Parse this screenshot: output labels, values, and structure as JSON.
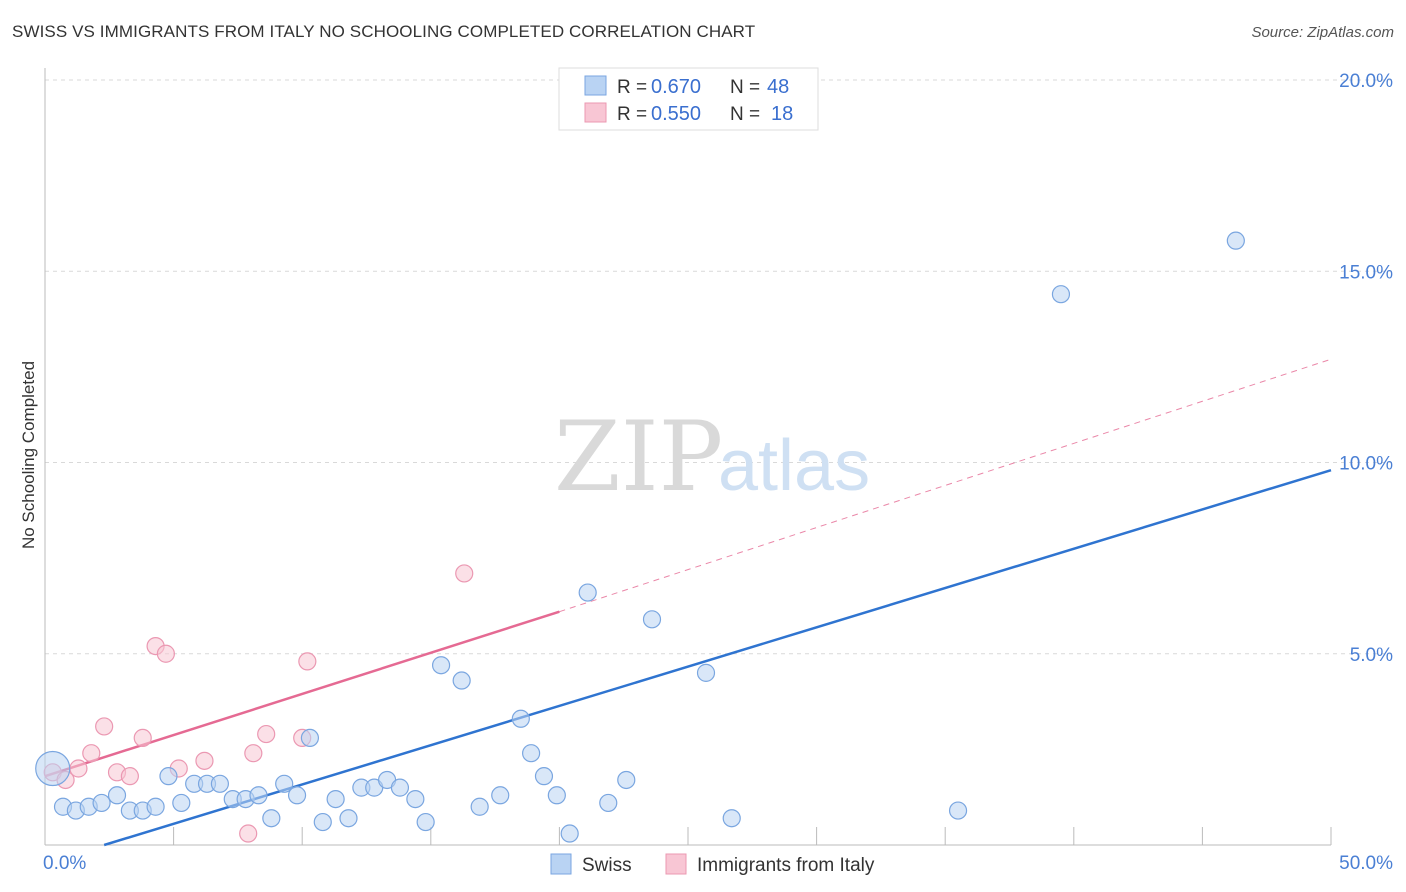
{
  "header": {
    "title": "SWISS VS IMMIGRANTS FROM ITALY NO SCHOOLING COMPLETED CORRELATION CHART",
    "source": "Source: ZipAtlas.com"
  },
  "watermark": {
    "zip": "ZIP",
    "atlas": "atlas"
  },
  "colors": {
    "swiss_fill": "#b9d3f3",
    "swiss_stroke": "#7aa6e0",
    "swiss_line": "#2f74d0",
    "italy_fill": "#f8c6d4",
    "italy_stroke": "#eb98b2",
    "italy_line": "#e56a93",
    "grid": "#d9d9d9",
    "axis_text": "#4a7fd4"
  },
  "legend": {
    "swiss": {
      "r_label": "R =",
      "r_value": "0.670",
      "n_label": "N =",
      "n_value": "48"
    },
    "italy": {
      "r_label": "R =",
      "r_value": "0.550",
      "n_label": "N =",
      "n_value": "18"
    }
  },
  "chart_data": {
    "type": "scatter",
    "title": "SWISS VS IMMIGRANTS FROM ITALY NO SCHOOLING COMPLETED CORRELATION CHART",
    "xlabel": "",
    "ylabel": "No Schooling Completed",
    "xlim": [
      0,
      50
    ],
    "ylim": [
      0,
      20
    ],
    "x_tick_labels": [
      "0.0%",
      "50.0%"
    ],
    "y_ticks": [
      5,
      10,
      15,
      20
    ],
    "y_tick_labels": [
      "5.0%",
      "10.0%",
      "15.0%",
      "20.0%"
    ],
    "series": [
      {
        "name": "Swiss",
        "points": [
          [
            0.3,
            2.0
          ],
          [
            0.7,
            1.0
          ],
          [
            1.2,
            0.9
          ],
          [
            1.7,
            1.0
          ],
          [
            2.2,
            1.1
          ],
          [
            2.8,
            1.3
          ],
          [
            3.3,
            0.9
          ],
          [
            3.8,
            0.9
          ],
          [
            4.3,
            1.0
          ],
          [
            4.8,
            1.8
          ],
          [
            5.3,
            1.1
          ],
          [
            5.8,
            1.6
          ],
          [
            6.3,
            1.6
          ],
          [
            6.8,
            1.6
          ],
          [
            7.3,
            1.2
          ],
          [
            7.8,
            1.2
          ],
          [
            8.3,
            1.3
          ],
          [
            8.8,
            0.7
          ],
          [
            9.3,
            1.6
          ],
          [
            9.8,
            1.3
          ],
          [
            10.3,
            2.8
          ],
          [
            10.8,
            0.6
          ],
          [
            11.3,
            1.2
          ],
          [
            11.8,
            0.7
          ],
          [
            12.3,
            1.5
          ],
          [
            12.8,
            1.5
          ],
          [
            13.3,
            1.7
          ],
          [
            13.8,
            1.5
          ],
          [
            14.4,
            1.2
          ],
          [
            14.8,
            0.6
          ],
          [
            15.4,
            4.7
          ],
          [
            16.2,
            4.3
          ],
          [
            16.9,
            1.0
          ],
          [
            17.7,
            1.3
          ],
          [
            18.5,
            3.3
          ],
          [
            18.9,
            2.4
          ],
          [
            19.4,
            1.8
          ],
          [
            19.9,
            1.3
          ],
          [
            20.4,
            0.3
          ],
          [
            21.1,
            6.6
          ],
          [
            21.9,
            1.1
          ],
          [
            22.6,
            1.7
          ],
          [
            23.6,
            5.9
          ],
          [
            25.7,
            4.5
          ],
          [
            26.7,
            0.7
          ],
          [
            35.5,
            0.9
          ],
          [
            39.5,
            14.4
          ],
          [
            46.3,
            15.8
          ]
        ],
        "sizes": [
          3,
          1,
          1,
          1,
          1,
          1,
          1,
          1,
          1,
          1,
          1,
          1,
          1,
          1,
          1,
          1,
          1,
          1,
          1,
          1,
          1,
          1,
          1,
          1,
          1,
          1,
          1,
          1,
          1,
          1,
          1,
          1,
          1,
          1,
          1,
          1,
          1,
          1,
          1,
          1,
          1,
          1,
          1,
          1,
          1,
          1,
          1,
          1
        ],
        "trend": {
          "x": [
            2.3,
            50.0
          ],
          "y": [
            0.0,
            9.8
          ],
          "dashed_extension": false
        }
      },
      {
        "name": "Immigrants from Italy",
        "points": [
          [
            0.3,
            1.9
          ],
          [
            0.8,
            1.7
          ],
          [
            1.3,
            2.0
          ],
          [
            1.8,
            2.4
          ],
          [
            2.3,
            3.1
          ],
          [
            2.8,
            1.9
          ],
          [
            3.3,
            1.8
          ],
          [
            3.8,
            2.8
          ],
          [
            4.3,
            5.2
          ],
          [
            4.7,
            5.0
          ],
          [
            5.2,
            2.0
          ],
          [
            6.2,
            2.2
          ],
          [
            7.9,
            0.3
          ],
          [
            8.1,
            2.4
          ],
          [
            8.6,
            2.9
          ],
          [
            10.0,
            2.8
          ],
          [
            10.2,
            4.8
          ],
          [
            16.3,
            7.1
          ]
        ],
        "sizes": [
          1,
          1,
          1,
          1,
          1,
          1,
          1,
          1,
          1,
          1,
          1,
          1,
          1,
          1,
          1,
          1,
          1,
          1
        ],
        "trend": {
          "x": [
            0.0,
            20.0
          ],
          "y": [
            1.8,
            6.1
          ],
          "dashed_x": [
            20.0,
            50.0
          ],
          "dashed_y": [
            6.1,
            12.7
          ]
        }
      }
    ],
    "legend": [
      "Swiss",
      "Immigrants from Italy"
    ]
  }
}
